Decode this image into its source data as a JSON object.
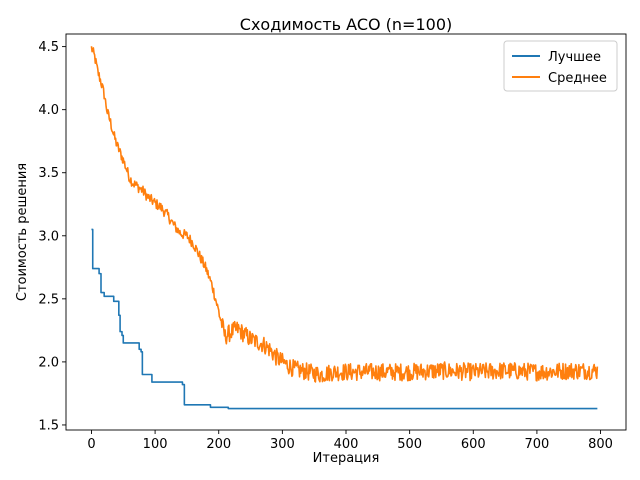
{
  "chart_data": {
    "type": "line",
    "title": "Сходимость ACO (n=100)",
    "xlabel": "Итерация",
    "ylabel": "Стоимость решения",
    "xlim": [
      -40,
      840
    ],
    "ylim": [
      1.46,
      4.6
    ],
    "xticks": [
      0,
      100,
      200,
      300,
      400,
      500,
      600,
      700,
      800
    ],
    "yticks": [
      1.5,
      2.0,
      2.5,
      3.0,
      3.5,
      4.0,
      4.5
    ],
    "xtick_labels": [
      "0",
      "100",
      "200",
      "300",
      "400",
      "500",
      "600",
      "700",
      "800"
    ],
    "ytick_labels": [
      "1.5",
      "2.0",
      "2.5",
      "3.0",
      "3.5",
      "4.0",
      "4.5"
    ],
    "grid": false,
    "legend_position": "top-right",
    "series": [
      {
        "name": "Лучшее",
        "color": "#1f77b4",
        "step": true,
        "x": [
          0,
          2,
          12,
          15,
          20,
          35,
          43,
          45,
          48,
          50,
          75,
          78,
          80,
          95,
          135,
          143,
          146,
          185,
          187,
          212,
          215,
          795
        ],
        "y": [
          3.05,
          2.74,
          2.7,
          2.55,
          2.52,
          2.48,
          2.37,
          2.24,
          2.21,
          2.15,
          2.1,
          2.08,
          1.9,
          1.84,
          1.84,
          1.82,
          1.66,
          1.66,
          1.64,
          1.64,
          1.63,
          1.63
        ]
      },
      {
        "name": "Среднее",
        "color": "#ff7f0e",
        "step": false,
        "x": [
          0,
          5,
          10,
          15,
          20,
          25,
          30,
          35,
          40,
          45,
          50,
          55,
          60,
          65,
          70,
          80,
          90,
          100,
          110,
          120,
          130,
          140,
          150,
          160,
          170,
          180,
          190,
          200,
          210,
          220,
          230,
          240,
          250,
          260,
          270,
          280,
          290,
          300,
          320,
          340,
          360,
          380,
          400,
          450,
          500,
          550,
          600,
          650,
          700,
          750,
          795
        ],
        "y": [
          4.49,
          4.42,
          4.3,
          4.22,
          4.12,
          3.98,
          3.9,
          3.8,
          3.72,
          3.66,
          3.6,
          3.53,
          3.46,
          3.42,
          3.4,
          3.36,
          3.3,
          3.26,
          3.22,
          3.16,
          3.08,
          3.02,
          3.0,
          2.94,
          2.84,
          2.74,
          2.6,
          2.4,
          2.2,
          2.24,
          2.26,
          2.22,
          2.18,
          2.16,
          2.14,
          2.1,
          2.04,
          2.0,
          1.94,
          1.92,
          1.9,
          1.92,
          1.92,
          1.92,
          1.92,
          1.93,
          1.92,
          1.93,
          1.92,
          1.93,
          1.93
        ],
        "noise": 0.07
      }
    ]
  }
}
